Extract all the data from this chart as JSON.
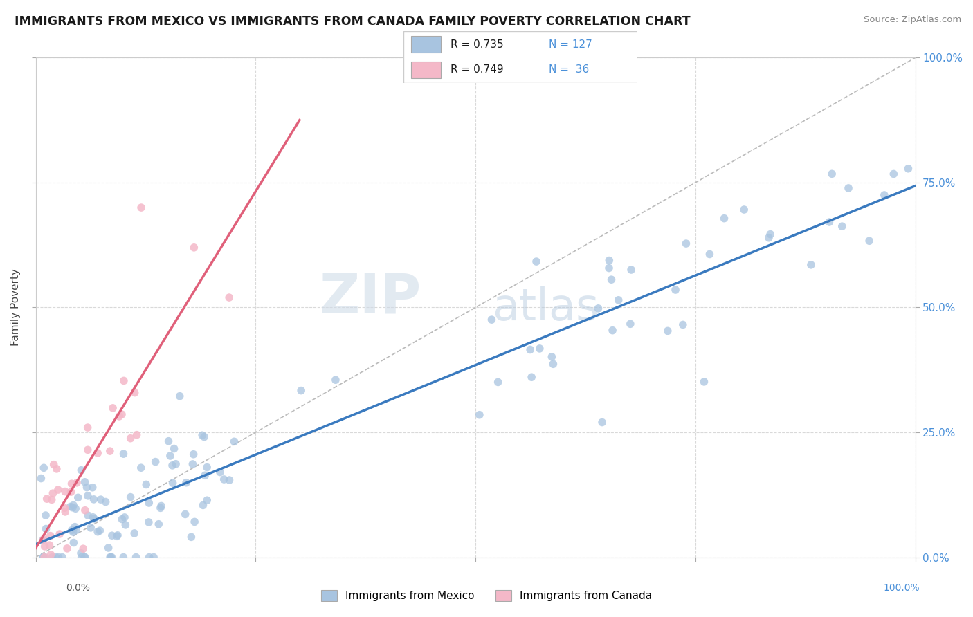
{
  "title": "IMMIGRANTS FROM MEXICO VS IMMIGRANTS FROM CANADA FAMILY POVERTY CORRELATION CHART",
  "source": "Source: ZipAtlas.com",
  "ylabel": "Family Poverty",
  "xlim": [
    0,
    1
  ],
  "ylim": [
    0,
    1
  ],
  "mexico_color": "#a8c4e0",
  "canada_color": "#f4b8c8",
  "mexico_line_color": "#3a7abf",
  "canada_line_color": "#e0607a",
  "watermark_zip": "ZIP",
  "watermark_atlas": "atlas",
  "mexico_N": 127,
  "canada_N": 36,
  "mexico_R": 0.735,
  "canada_R": 0.749,
  "right_ytick_labels": [
    "0.0%",
    "25.0%",
    "50.0%",
    "75.0%",
    "100.0%"
  ],
  "bottom_xtick_left": "0.0%",
  "bottom_xtick_right": "100.0%",
  "legend_bottom_mexico": "Immigrants from Mexico",
  "legend_bottom_canada": "Immigrants from Canada"
}
